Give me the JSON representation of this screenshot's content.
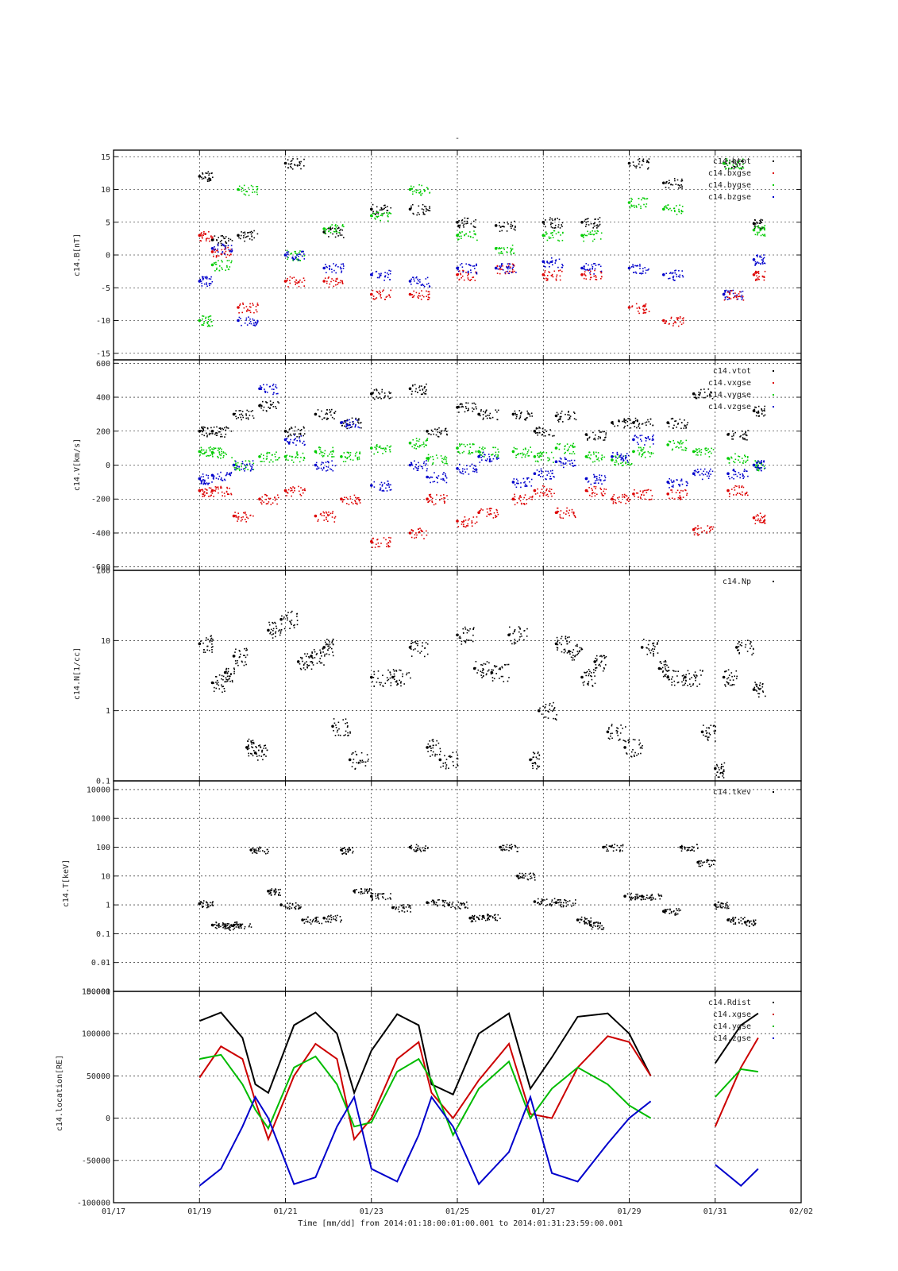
{
  "figure": {
    "top_mark": "-",
    "xlabel": "Time [mm/dd]  from 2014:01:18:00:01:00.001  to  2014:01:31:23:59:00.001",
    "x_ticks": [
      "01/17",
      "01/19",
      "01/21",
      "01/23",
      "01/25",
      "01/27",
      "01/29",
      "01/31",
      "02/02"
    ]
  },
  "chart_data": [
    {
      "type": "scatter",
      "ylabel": "c14.B[nT]",
      "ylim": [
        -16,
        16
      ],
      "yscale": "linear",
      "y_ticks": [
        "-15",
        "-10",
        "-5",
        "0",
        "5",
        "10",
        "15"
      ],
      "grid": true,
      "legend_position": "top-right",
      "series": [
        {
          "name": "c14.btot",
          "color": "#000000",
          "x": [
            1.0,
            1.3,
            1.9,
            3.0,
            3.9,
            5.0,
            5.9,
            7.0,
            7.9,
            9.0,
            9.9,
            11.0,
            11.8,
            13.2,
            13.9
          ],
          "y": [
            12,
            2.3,
            3,
            14,
            3.5,
            7,
            7,
            5,
            4.5,
            5,
            5,
            14,
            11,
            14,
            4.8
          ]
        },
        {
          "name": "c14.bxgse",
          "color": "#dd0000",
          "x": [
            1.0,
            1.3,
            1.9,
            3.0,
            3.9,
            5.0,
            5.9,
            7.0,
            7.9,
            9.0,
            9.9,
            11.0,
            11.8,
            13.2,
            13.9
          ],
          "y": [
            3,
            0.5,
            -8,
            -4,
            -4,
            -6,
            -6,
            -3,
            -2,
            -3,
            -3,
            -8,
            -10,
            -6,
            -3
          ]
        },
        {
          "name": "c14.bygse",
          "color": "#00cc00",
          "x": [
            1.0,
            1.3,
            1.9,
            3.0,
            3.9,
            5.0,
            5.9,
            7.0,
            7.9,
            9.0,
            9.9,
            11.0,
            11.8,
            13.2,
            13.9
          ],
          "y": [
            -10,
            -1.5,
            10,
            0,
            4,
            6,
            10,
            3,
            1,
            3,
            3,
            8,
            7,
            14,
            3.8
          ]
        },
        {
          "name": "c14.bzgse",
          "color": "#0000cc",
          "x": [
            1.0,
            1.3,
            1.9,
            3.0,
            3.9,
            5.0,
            5.9,
            7.0,
            7.9,
            9.0,
            9.9,
            11.0,
            11.8,
            13.2,
            13.9
          ],
          "y": [
            -4,
            1,
            -10,
            0,
            -2,
            -3,
            -4,
            -2,
            -2,
            -1,
            -2,
            -2,
            -3,
            -6,
            -0.7
          ]
        }
      ]
    },
    {
      "type": "scatter",
      "ylabel": "c14.V[km/s]",
      "ylim": [
        -620,
        620
      ],
      "yscale": "linear",
      "y_ticks": [
        "-600",
        "-400",
        "-200",
        "0",
        "200",
        "400",
        "600"
      ],
      "grid": true,
      "legend_position": "top-right",
      "series": [
        {
          "name": "c14.vtot",
          "color": "#000000",
          "x": [
            1.0,
            1.3,
            1.8,
            2.4,
            3.0,
            3.7,
            4.3,
            5.0,
            5.9,
            6.3,
            7.0,
            7.5,
            8.3,
            8.8,
            9.3,
            10.0,
            10.6,
            11.1,
            11.9,
            12.5,
            13.3,
            13.9
          ],
          "y": [
            200,
            200,
            300,
            350,
            200,
            300,
            250,
            420,
            450,
            200,
            340,
            300,
            300,
            200,
            290,
            180,
            250,
            250,
            250,
            420,
            180,
            320
          ]
        },
        {
          "name": "c14.vxgse",
          "color": "#dd0000",
          "x": [
            1.0,
            1.3,
            1.8,
            2.4,
            3.0,
            3.7,
            4.3,
            5.0,
            5.9,
            6.3,
            7.0,
            7.5,
            8.3,
            8.8,
            9.3,
            10.0,
            10.6,
            11.1,
            11.9,
            12.5,
            13.3,
            13.9
          ],
          "y": [
            -150,
            -150,
            -300,
            -200,
            -150,
            -300,
            -200,
            -450,
            -400,
            -200,
            -330,
            -280,
            -200,
            -150,
            -280,
            -150,
            -200,
            -170,
            -170,
            -380,
            -150,
            -310
          ]
        },
        {
          "name": "c14.vygse",
          "color": "#00cc00",
          "x": [
            1.0,
            1.3,
            1.8,
            2.4,
            3.0,
            3.7,
            4.3,
            5.0,
            5.9,
            6.3,
            7.0,
            7.5,
            8.3,
            8.8,
            9.3,
            10.0,
            10.6,
            11.1,
            11.9,
            12.5,
            13.3,
            13.9
          ],
          "y": [
            80,
            75,
            0,
            50,
            50,
            80,
            50,
            100,
            130,
            40,
            100,
            80,
            80,
            50,
            100,
            50,
            30,
            80,
            120,
            80,
            40,
            0
          ]
        },
        {
          "name": "c14.vzgse",
          "color": "#0000cc",
          "x": [
            1.0,
            1.3,
            1.8,
            2.4,
            3.0,
            3.7,
            4.3,
            5.0,
            5.9,
            6.3,
            7.0,
            7.5,
            8.3,
            8.8,
            9.3,
            10.0,
            10.6,
            11.1,
            11.9,
            12.5,
            13.3,
            13.9
          ],
          "y": [
            -80,
            -60,
            0,
            450,
            150,
            0,
            250,
            -120,
            0,
            -70,
            -20,
            50,
            -100,
            -50,
            20,
            -80,
            50,
            150,
            -100,
            -50,
            -50,
            0
          ]
        }
      ]
    },
    {
      "type": "scatter",
      "ylabel": "c14.N[1/cc]",
      "ylim": [
        0.1,
        100
      ],
      "yscale": "log",
      "y_ticks": [
        "0.1",
        "1",
        "10",
        "100"
      ],
      "grid": true,
      "legend_position": "top-right",
      "series": [
        {
          "name": "c14.Np",
          "color": "#000000",
          "x": [
            1.0,
            1.3,
            1.6,
            1.8,
            2.1,
            2.3,
            2.6,
            2.9,
            3.3,
            3.6,
            3.9,
            4.1,
            4.5,
            5.0,
            5.5,
            5.9,
            6.3,
            6.6,
            7.0,
            7.4,
            7.8,
            8.2,
            8.7,
            8.9,
            9.3,
            9.6,
            9.9,
            10.2,
            10.5,
            10.9,
            11.3,
            11.7,
            11.9,
            12.3,
            12.7,
            13.0,
            13.2,
            13.5,
            13.9
          ],
          "y": [
            9,
            2.5,
            3.5,
            6,
            0.3,
            0.25,
            14,
            20,
            5,
            6,
            8,
            0.6,
            0.2,
            3,
            3,
            8,
            0.3,
            0.2,
            12,
            4,
            3.5,
            12,
            0.2,
            1,
            9,
            7,
            3,
            5,
            0.5,
            0.3,
            8,
            4,
            3,
            3,
            0.5,
            0.15,
            3,
            8,
            2
          ]
        }
      ]
    },
    {
      "type": "scatter",
      "ylabel": "c14.T[keV]",
      "ylim": [
        0.001,
        20000
      ],
      "yscale": "log",
      "y_ticks": [
        "0.001",
        "0.01",
        "0.1",
        "1",
        "10",
        "100",
        "1000",
        "10000"
      ],
      "grid": true,
      "legend_position": "top-right",
      "series": [
        {
          "name": "c14.tkev",
          "color": "#000000",
          "x": [
            1.0,
            1.3,
            1.6,
            1.8,
            2.2,
            2.6,
            2.9,
            3.4,
            3.9,
            4.3,
            4.6,
            5.0,
            5.5,
            5.9,
            6.3,
            6.8,
            7.3,
            7.6,
            8.0,
            8.4,
            8.8,
            9.3,
            9.8,
            10.1,
            10.4,
            10.9,
            11.3,
            11.8,
            12.2,
            12.6,
            13.0,
            13.3,
            13.7
          ],
          "y": [
            1.1,
            0.2,
            0.18,
            0.2,
            80,
            3,
            1,
            0.3,
            0.35,
            80,
            3,
            2,
            0.8,
            100,
            1.2,
            1,
            0.35,
            0.4,
            100,
            10,
            1.3,
            1.2,
            0.3,
            0.2,
            100,
            2,
            2,
            0.6,
            100,
            30,
            1,
            0.3,
            0.25
          ]
        }
      ]
    },
    {
      "type": "line",
      "ylabel": "c14.location[RE]",
      "ylim": [
        -100000,
        150000
      ],
      "yscale": "linear",
      "y_ticks": [
        "-100000",
        "-50000",
        "0",
        "50000",
        "100000",
        "150000"
      ],
      "grid": true,
      "legend_position": "top-right",
      "x": [
        1.0,
        1.5,
        2.0,
        2.3,
        2.6,
        3.2,
        3.7,
        4.2,
        4.6,
        5.0,
        5.6,
        6.1,
        6.4,
        6.9,
        7.5,
        8.2,
        8.7,
        9.2,
        9.8,
        10.5,
        11.0,
        11.5,
        12.2,
        12.7,
        13.0,
        13.6,
        14.0
      ],
      "series": [
        {
          "name": "c14.Rdist",
          "color": "#000000",
          "y": [
            115000,
            125000,
            95000,
            40000,
            30000,
            110000,
            125000,
            100000,
            30000,
            80000,
            123000,
            110000,
            40000,
            28000,
            100000,
            124000,
            35000,
            72000,
            120000,
            124000,
            100000,
            50000,
            null,
            null,
            65000,
            110000,
            124000
          ]
        },
        {
          "name": "c14.xgse",
          "color": "#cc0000",
          "y": [
            48000,
            85000,
            70000,
            20000,
            -25000,
            50000,
            88000,
            70000,
            -25000,
            0,
            70000,
            90000,
            30000,
            0,
            45000,
            88000,
            5000,
            0,
            60000,
            97000,
            90000,
            50000,
            null,
            null,
            -10000,
            60000,
            95000
          ]
        },
        {
          "name": "c14.ygse",
          "color": "#00bb00",
          "y": [
            70000,
            75000,
            40000,
            10000,
            -12000,
            60000,
            73000,
            40000,
            -10000,
            -5000,
            55000,
            70000,
            45000,
            -20000,
            35000,
            67000,
            0,
            35000,
            60000,
            40000,
            15000,
            0,
            null,
            null,
            25000,
            58000,
            55000
          ]
        },
        {
          "name": "c14.zgse",
          "color": "#0000cc",
          "y": [
            -80000,
            -60000,
            -10000,
            25000,
            0,
            -78000,
            -70000,
            -10000,
            25000,
            -60000,
            -75000,
            -20000,
            25000,
            -10000,
            -78000,
            -40000,
            25000,
            -65000,
            -75000,
            -30000,
            0,
            20000,
            null,
            null,
            -55000,
            -80000,
            -60000
          ]
        }
      ]
    }
  ]
}
